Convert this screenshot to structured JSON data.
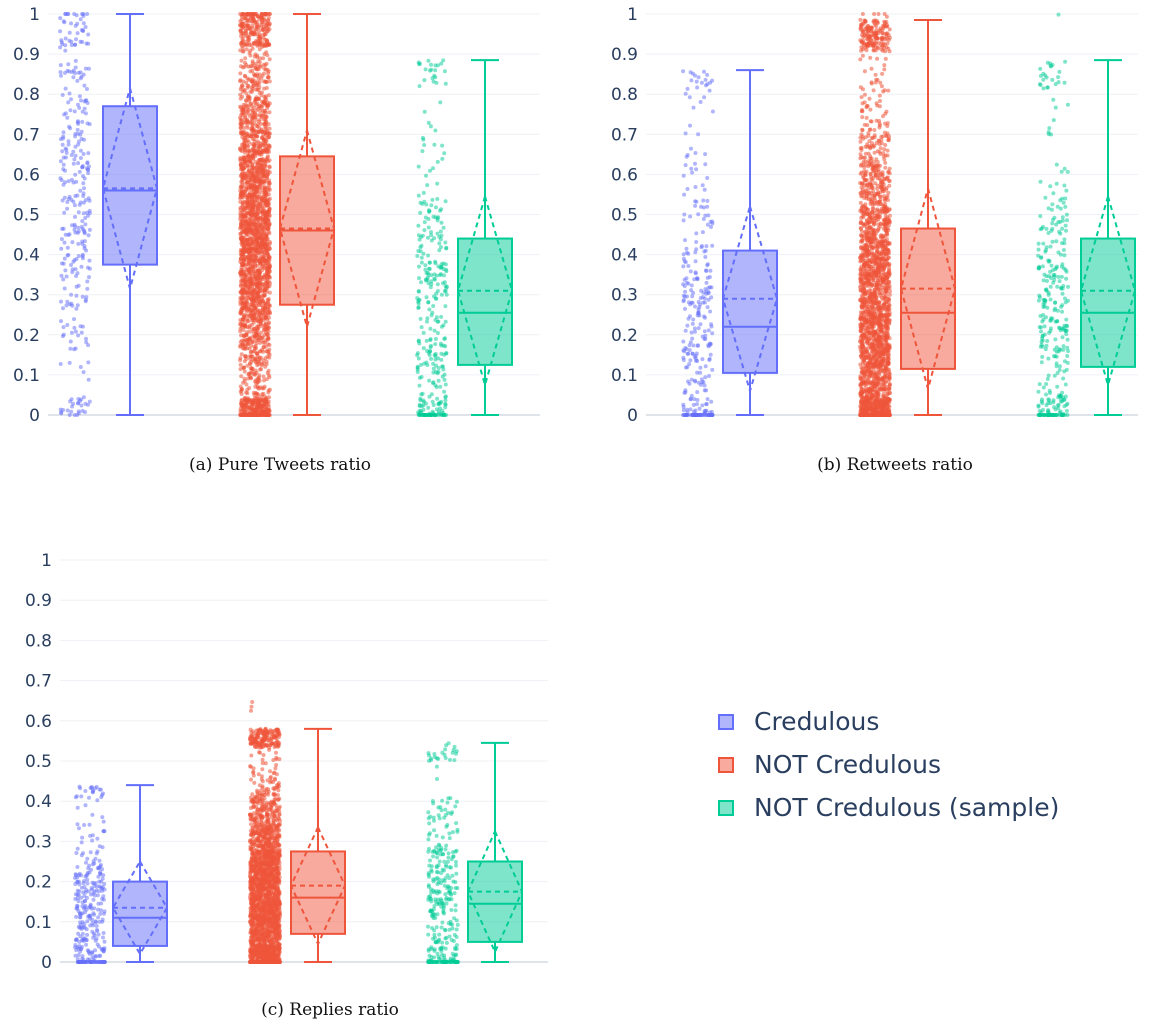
{
  "series_styles": [
    {
      "name": "Credulous",
      "color": "#636efa"
    },
    {
      "name": "NOT Credulous",
      "color": "#ef553b"
    },
    {
      "name": "NOT Credulous (sample)",
      "color": "#00cc96"
    }
  ],
  "legend": {
    "items": [
      "Credulous",
      "NOT Credulous",
      "NOT Credulous (sample)"
    ],
    "placement": "right"
  },
  "chart_data": [
    {
      "type": "box",
      "caption": "(a) Pure Tweets ratio",
      "ylim": [
        0,
        1
      ],
      "yticks": [
        "0",
        "0.1",
        "0.2",
        "0.3",
        "0.4",
        "0.5",
        "0.6",
        "0.7",
        "0.8",
        "0.9",
        "1"
      ],
      "grid": true,
      "series": [
        {
          "name": "Credulous",
          "min": 0,
          "q1": 0.375,
          "median": 0.56,
          "mean": 0.565,
          "q3": 0.77,
          "max": 1,
          "sd": 0.25
        },
        {
          "name": "NOT Credulous",
          "min": 0,
          "q1": 0.275,
          "median": 0.46,
          "mean": 0.465,
          "q3": 0.645,
          "max": 1,
          "sd": 0.245
        },
        {
          "name": "NOT Credulous (sample)",
          "min": 0,
          "q1": 0.125,
          "median": 0.255,
          "mean": 0.31,
          "q3": 0.44,
          "max": 0.885,
          "sd": 0.235
        }
      ]
    },
    {
      "type": "box",
      "caption": "(b) Retweets ratio",
      "ylim": [
        0,
        1
      ],
      "yticks": [
        "0",
        "0.1",
        "0.2",
        "0.3",
        "0.4",
        "0.5",
        "0.6",
        "0.7",
        "0.8",
        "0.9",
        "1"
      ],
      "grid": true,
      "series": [
        {
          "name": "Credulous",
          "min": 0,
          "q1": 0.105,
          "median": 0.22,
          "mean": 0.29,
          "q3": 0.41,
          "max": 0.86,
          "sd": 0.23
        },
        {
          "name": "NOT Credulous",
          "min": 0,
          "q1": 0.115,
          "median": 0.255,
          "mean": 0.315,
          "q3": 0.465,
          "max": 0.985,
          "sd": 0.25
        },
        {
          "name": "NOT Credulous (sample)",
          "min": 0,
          "q1": 0.12,
          "median": 0.255,
          "mean": 0.31,
          "q3": 0.44,
          "max": 0.885,
          "sd": 0.235
        }
      ]
    },
    {
      "type": "box",
      "caption": "(c) Replies ratio",
      "ylim": [
        0,
        1
      ],
      "yticks": [
        "0",
        "0.1",
        "0.2",
        "0.3",
        "0.4",
        "0.5",
        "0.6",
        "0.7",
        "0.8",
        "0.9",
        "1"
      ],
      "grid": true,
      "series": [
        {
          "name": "Credulous",
          "min": 0,
          "q1": 0.04,
          "median": 0.11,
          "mean": 0.135,
          "q3": 0.2,
          "max": 0.44,
          "sd": 0.115
        },
        {
          "name": "NOT Credulous",
          "min": 0,
          "q1": 0.07,
          "median": 0.16,
          "mean": 0.19,
          "q3": 0.275,
          "max": 0.58,
          "sd": 0.145
        },
        {
          "name": "NOT Credulous (sample)",
          "min": 0,
          "q1": 0.05,
          "median": 0.145,
          "mean": 0.175,
          "q3": 0.25,
          "max": 0.545,
          "sd": 0.15
        }
      ]
    }
  ]
}
